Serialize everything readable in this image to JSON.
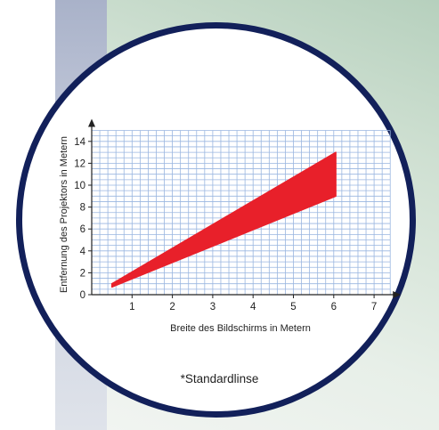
{
  "chart_data": {
    "type": "area",
    "xlabel": "Breite des Bildschirms in Metern",
    "ylabel": "Entfernung des Projektors in Metern",
    "xlim": [
      0,
      7.4
    ],
    "ylim": [
      0,
      15
    ],
    "x_ticks": [
      1,
      2,
      3,
      4,
      5,
      6,
      7
    ],
    "y_ticks": [
      0,
      2,
      4,
      6,
      8,
      10,
      12,
      14
    ],
    "grid": true,
    "series": [
      {
        "x": [
          0.5,
          6.05
        ],
        "y_upper": [
          1.0,
          13.0
        ],
        "y_lower": [
          0.7,
          9.0
        ],
        "color": "#e8202a"
      }
    ],
    "annotation": "*Standardlinse",
    "colors": {
      "grid": "#9ab6e0",
      "axis": "#222222",
      "band": "#e8202a",
      "ring": "#12205a"
    }
  }
}
